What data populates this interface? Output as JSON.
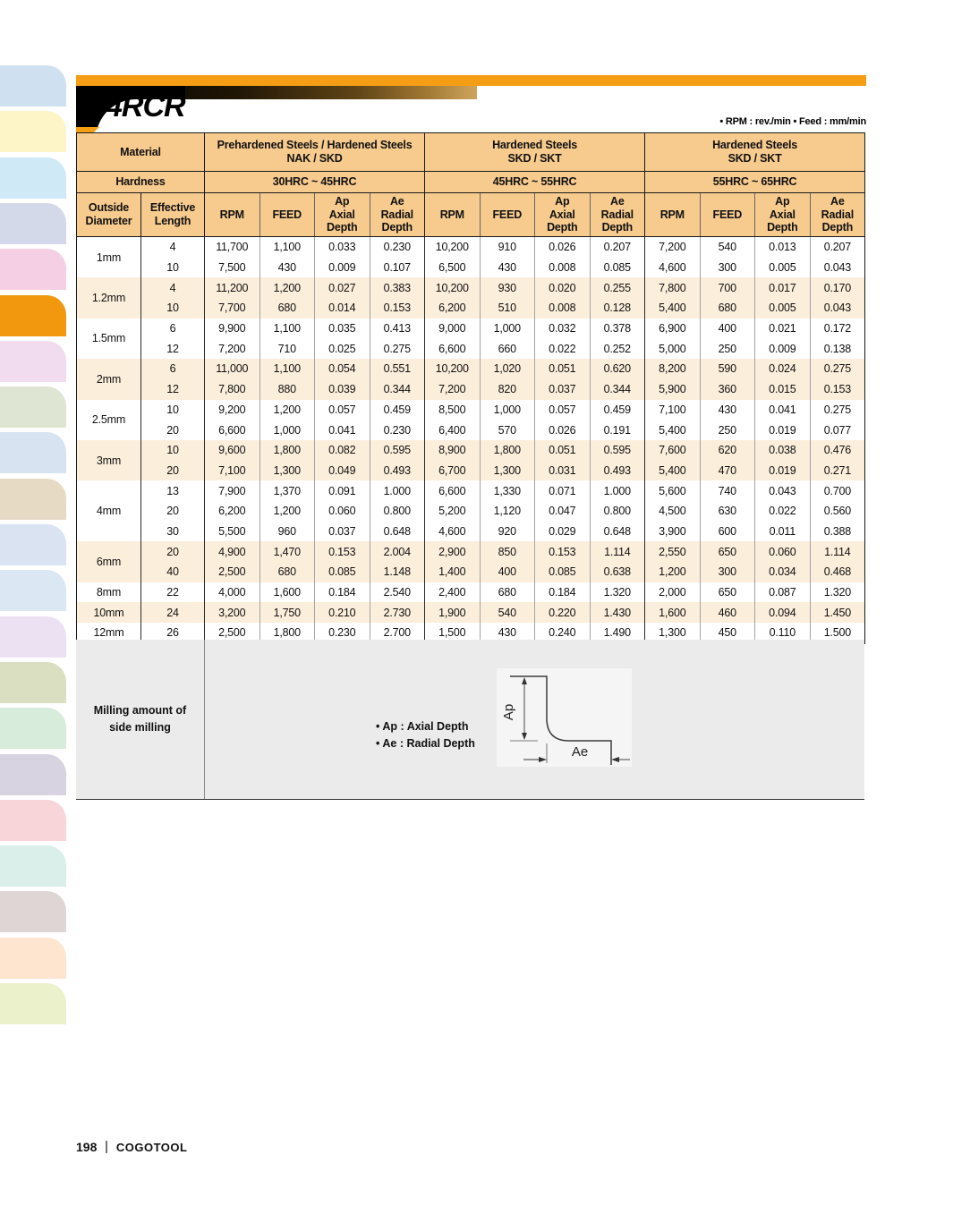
{
  "header": {
    "title": "4RCR",
    "units_note": "• RPM : rev./min  • Feed : mm/min"
  },
  "colors": {
    "accent_orange": "#F59E15",
    "table_header": "#F7CA8E",
    "row_stripe": "#FBEEDB",
    "milling_bg": "#EBEBEB"
  },
  "sidebar": {
    "active_index": 5,
    "tabs": [
      "#cfe1f0",
      "#fdf5c8",
      "#cfe9f6",
      "#d4d9e9",
      "#f5cfe4",
      "#F2980F",
      "#f0dcee",
      "#dfe5d3",
      "#d7e3f1",
      "#e7dac5",
      "#d9e3f2",
      "#dbe7f3",
      "#ece1f3",
      "#dadfc1",
      "#d8ecdc",
      "#d8d3e1",
      "#f8d5d9",
      "#daeeea",
      "#dfd5d5",
      "#fde5d0",
      "#eaf1cb"
    ]
  },
  "table": {
    "material_label": "Material",
    "hardness_label": "Hardness",
    "col1": "Outside Diameter",
    "col2": "Effective Length",
    "groups": [
      {
        "material": "Prehardened Steels / Hardened Steels",
        "grade": "NAK / SKD",
        "hardness": "30HRC ~ 45HRC"
      },
      {
        "material": "Hardened Steels",
        "grade": "SKD / SKT",
        "hardness": "45HRC ~ 55HRC"
      },
      {
        "material": "Hardened Steels",
        "grade": "SKD / SKT",
        "hardness": "55HRC ~ 65HRC"
      }
    ],
    "sub_cols": [
      [
        "RPM"
      ],
      [
        "FEED"
      ],
      [
        "Ap",
        "Axial",
        "Depth"
      ],
      [
        "Ae",
        "Radial",
        "Depth"
      ]
    ],
    "rows": [
      {
        "diameter": "1mm",
        "stripe": false,
        "entries": [
          {
            "length": "4",
            "values": [
              "11,700",
              "1,100",
              "0.033",
              "0.230",
              "10,200",
              "910",
              "0.026",
              "0.207",
              "7,200",
              "540",
              "0.013",
              "0.207"
            ]
          },
          {
            "length": "10",
            "values": [
              "7,500",
              "430",
              "0.009",
              "0.107",
              "6,500",
              "430",
              "0.008",
              "0.085",
              "4,600",
              "300",
              "0.005",
              "0.043"
            ]
          }
        ]
      },
      {
        "diameter": "1.2mm",
        "stripe": true,
        "entries": [
          {
            "length": "4",
            "values": [
              "11,200",
              "1,200",
              "0.027",
              "0.383",
              "10,200",
              "930",
              "0.020",
              "0.255",
              "7,800",
              "700",
              "0.017",
              "0.170"
            ]
          },
          {
            "length": "10",
            "values": [
              "7,700",
              "680",
              "0.014",
              "0.153",
              "6,200",
              "510",
              "0.008",
              "0.128",
              "5,400",
              "680",
              "0.005",
              "0.043"
            ]
          }
        ]
      },
      {
        "diameter": "1.5mm",
        "stripe": false,
        "entries": [
          {
            "length": "6",
            "values": [
              "9,900",
              "1,100",
              "0.035",
              "0.413",
              "9,000",
              "1,000",
              "0.032",
              "0.378",
              "6,900",
              "400",
              "0.021",
              "0.172"
            ]
          },
          {
            "length": "12",
            "values": [
              "7,200",
              "710",
              "0.025",
              "0.275",
              "6,600",
              "660",
              "0.022",
              "0.252",
              "5,000",
              "250",
              "0.009",
              "0.138"
            ]
          }
        ]
      },
      {
        "diameter": "2mm",
        "stripe": true,
        "entries": [
          {
            "length": "6",
            "values": [
              "11,000",
              "1,100",
              "0.054",
              "0.551",
              "10,200",
              "1,020",
              "0.051",
              "0.620",
              "8,200",
              "590",
              "0.024",
              "0.275"
            ]
          },
          {
            "length": "12",
            "values": [
              "7,800",
              "880",
              "0.039",
              "0.344",
              "7,200",
              "820",
              "0.037",
              "0.344",
              "5,900",
              "360",
              "0.015",
              "0.153"
            ]
          }
        ]
      },
      {
        "diameter": "2.5mm",
        "stripe": false,
        "entries": [
          {
            "length": "10",
            "values": [
              "9,200",
              "1,200",
              "0.057",
              "0.459",
              "8,500",
              "1,000",
              "0.057",
              "0.459",
              "7,100",
              "430",
              "0.041",
              "0.275"
            ]
          },
          {
            "length": "20",
            "values": [
              "6,600",
              "1,000",
              "0.041",
              "0.230",
              "6,400",
              "570",
              "0.026",
              "0.191",
              "5,400",
              "250",
              "0.019",
              "0.077"
            ]
          }
        ]
      },
      {
        "diameter": "3mm",
        "stripe": true,
        "entries": [
          {
            "length": "10",
            "values": [
              "9,600",
              "1,800",
              "0.082",
              "0.595",
              "8,900",
              "1,800",
              "0.051",
              "0.595",
              "7,600",
              "620",
              "0.038",
              "0.476"
            ]
          },
          {
            "length": "20",
            "values": [
              "7,100",
              "1,300",
              "0.049",
              "0.493",
              "6,700",
              "1,300",
              "0.031",
              "0.493",
              "5,400",
              "470",
              "0.019",
              "0.271"
            ]
          }
        ]
      },
      {
        "diameter": "4mm",
        "stripe": false,
        "entries": [
          {
            "length": "13",
            "values": [
              "7,900",
              "1,370",
              "0.091",
              "1.000",
              "6,600",
              "1,330",
              "0.071",
              "1.000",
              "5,600",
              "740",
              "0.043",
              "0.700"
            ]
          },
          {
            "length": "20",
            "values": [
              "6,200",
              "1,200",
              "0.060",
              "0.800",
              "5,200",
              "1,120",
              "0.047",
              "0.800",
              "4,500",
              "630",
              "0.022",
              "0.560"
            ]
          },
          {
            "length": "30",
            "values": [
              "5,500",
              "960",
              "0.037",
              "0.648",
              "4,600",
              "920",
              "0.029",
              "0.648",
              "3,900",
              "600",
              "0.011",
              "0.388"
            ]
          }
        ]
      },
      {
        "diameter": "6mm",
        "stripe": true,
        "entries": [
          {
            "length": "20",
            "values": [
              "4,900",
              "1,470",
              "0.153",
              "2.004",
              "2,900",
              "850",
              "0.153",
              "1.114",
              "2,550",
              "650",
              "0.060",
              "1.114"
            ]
          },
          {
            "length": "40",
            "values": [
              "2,500",
              "680",
              "0.085",
              "1.148",
              "1,400",
              "400",
              "0.085",
              "0.638",
              "1,200",
              "300",
              "0.034",
              "0.468"
            ]
          }
        ]
      },
      {
        "diameter": "8mm",
        "stripe": false,
        "entries": [
          {
            "length": "22",
            "values": [
              "4,000",
              "1,600",
              "0.184",
              "2.540",
              "2,400",
              "680",
              "0.184",
              "1.320",
              "2,000",
              "650",
              "0.087",
              "1.320"
            ]
          }
        ]
      },
      {
        "diameter": "10mm",
        "stripe": true,
        "entries": [
          {
            "length": "24",
            "values": [
              "3,200",
              "1,750",
              "0.210",
              "2.730",
              "1,900",
              "540",
              "0.220",
              "1.430",
              "1,600",
              "460",
              "0.094",
              "1.450"
            ]
          }
        ]
      },
      {
        "diameter": "12mm",
        "stripe": false,
        "entries": [
          {
            "length": "26",
            "values": [
              "2,500",
              "1,800",
              "0.230",
              "2.700",
              "1,500",
              "430",
              "0.240",
              "1.490",
              "1,300",
              "450",
              "0.110",
              "1.500"
            ]
          }
        ]
      }
    ]
  },
  "milling": {
    "label": "Milling amount of side milling",
    "legend": [
      "• Ap : Axial Depth",
      "• Ae : Radial Depth"
    ],
    "diagram": {
      "ap_label": "Ap",
      "ae_label": "Ae"
    }
  },
  "footer": {
    "page_number": "198",
    "brand": "COGOTOOL"
  }
}
